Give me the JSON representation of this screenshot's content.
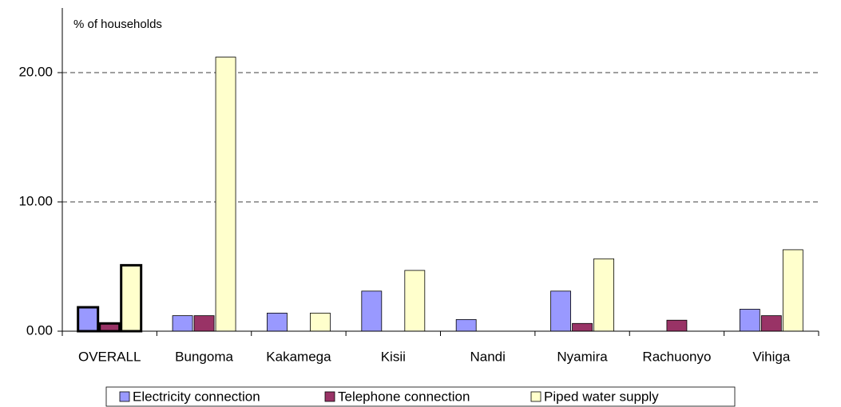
{
  "chart_data": {
    "type": "bar",
    "y_label": "% of households",
    "categories": [
      "OVERALL",
      "Bungoma",
      "Kakamega",
      "Kisii",
      "Nandi",
      "Nyamira",
      "Rachuonyo",
      "Vihiga"
    ],
    "highlight": [
      "OVERALL"
    ],
    "series": [
      {
        "name": "Electricity connection",
        "color": "#9999ff",
        "values": [
          1.85,
          1.2,
          1.4,
          3.1,
          0.9,
          3.1,
          0,
          1.7
        ]
      },
      {
        "name": "Telephone connection",
        "color": "#993366",
        "values": [
          0.6,
          1.2,
          0,
          0,
          0,
          0.6,
          0.85,
          1.2
        ]
      },
      {
        "name": "Piped water supply",
        "color": "#ffffcc",
        "values": [
          5.1,
          21.2,
          1.4,
          4.7,
          0,
          5.6,
          0,
          6.3
        ]
      }
    ],
    "ylim": [
      0,
      25
    ],
    "yticks": [
      {
        "value": 0,
        "label": "0.00"
      },
      {
        "value": 10,
        "label": "10.00"
      },
      {
        "value": 20,
        "label": "20.00"
      }
    ],
    "grid": true,
    "legend": "bottom"
  }
}
